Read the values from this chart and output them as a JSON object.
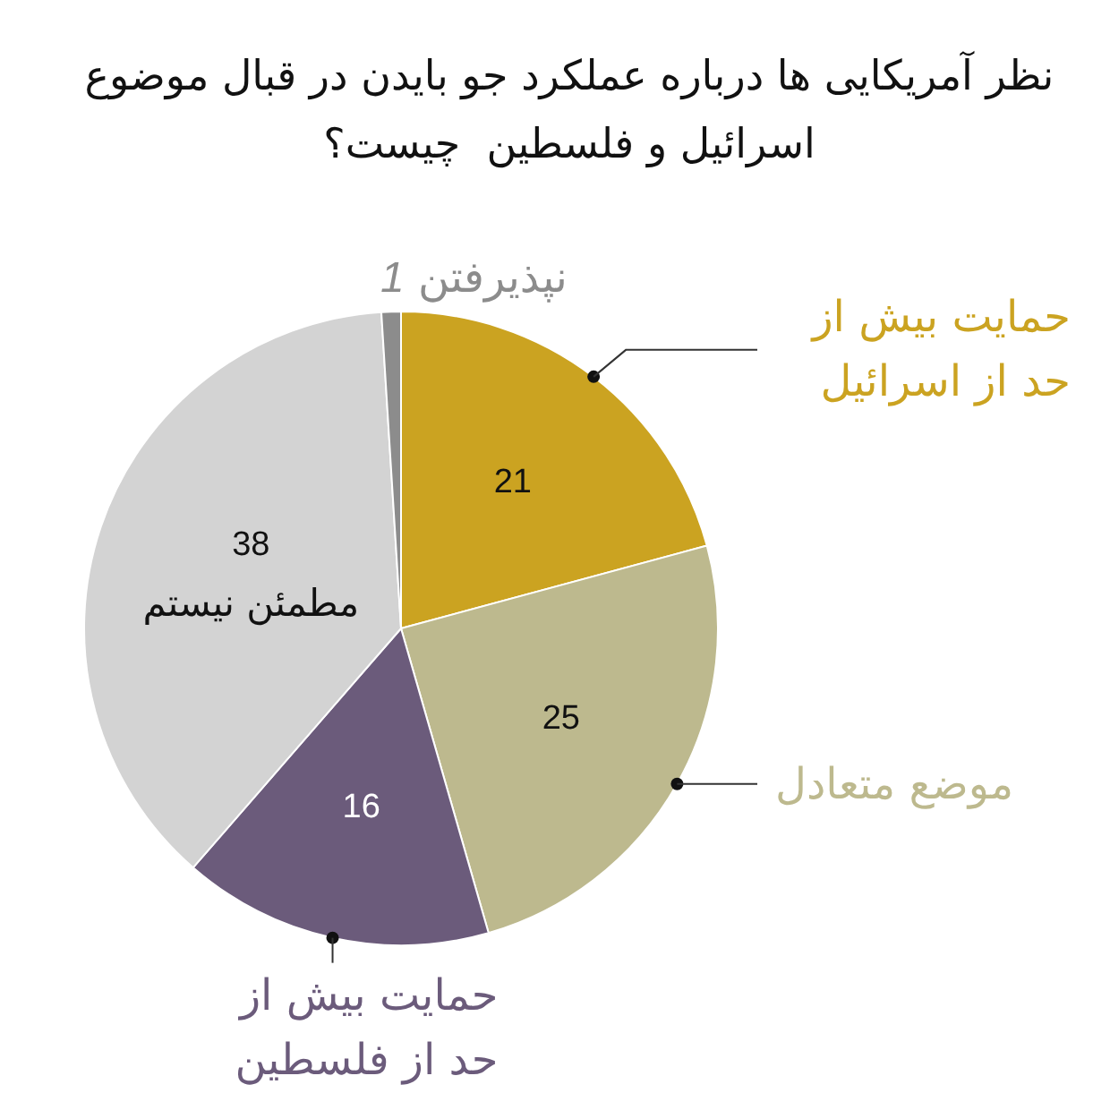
{
  "chart_data": {
    "type": "pie",
    "title": "نظر آمریکایی ها درباره عملکرد جو بایدن در قبال موضوع اسرائیل و فلسطین  چیست؟",
    "categories": [
      "حمایت بیش از حد از اسرائیل",
      "موضع متعادل",
      "حمایت بیش از حد از فلسطین",
      "مطمئن نیستم",
      "نپذیرفتن"
    ],
    "values": [
      21,
      25,
      16,
      38,
      1
    ],
    "colors": [
      "#cba321",
      "#bdb98e",
      "#6b5b7b",
      "#d3d3d3",
      "#8c8c8c"
    ],
    "data_labels": true
  }
}
